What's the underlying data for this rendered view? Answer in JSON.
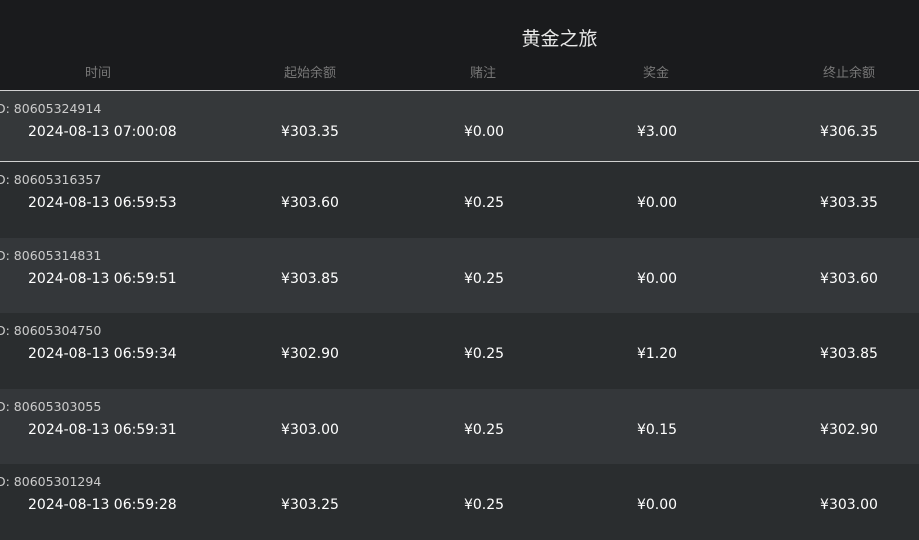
{
  "title": "黄金之旅",
  "columns": [
    "时间",
    "起始余额",
    "赌注",
    "奖金",
    "终止余额"
  ],
  "rows": [
    {
      "id": "D:  80605324914",
      "time": "2024-08-13  07:00:08",
      "start": "¥303.35",
      "bet": "¥0.00",
      "win": "¥3.00",
      "end": "¥306.35"
    },
    {
      "id": "D:  80605316357",
      "time": "2024-08-13  06:59:53",
      "start": "¥303.60",
      "bet": "¥0.25",
      "win": "¥0.00",
      "end": "¥303.35"
    },
    {
      "id": "D:  80605314831",
      "time": "2024-08-13  06:59:51",
      "start": "¥303.85",
      "bet": "¥0.25",
      "win": "¥0.00",
      "end": "¥303.60"
    },
    {
      "id": "D:  80605304750",
      "time": "2024-08-13  06:59:34",
      "start": "¥302.90",
      "bet": "¥0.25",
      "win": "¥1.20",
      "end": "¥303.85"
    },
    {
      "id": "D:  80605303055",
      "time": "2024-08-13  06:59:31",
      "start": "¥303.00",
      "bet": "¥0.25",
      "win": "¥0.15",
      "end": "¥302.90"
    },
    {
      "id": "D:  80605301294",
      "time": "2024-08-13  06:59:28",
      "start": "¥303.25",
      "bet": "¥0.25",
      "win": "¥0.00",
      "end": "¥303.00"
    }
  ]
}
